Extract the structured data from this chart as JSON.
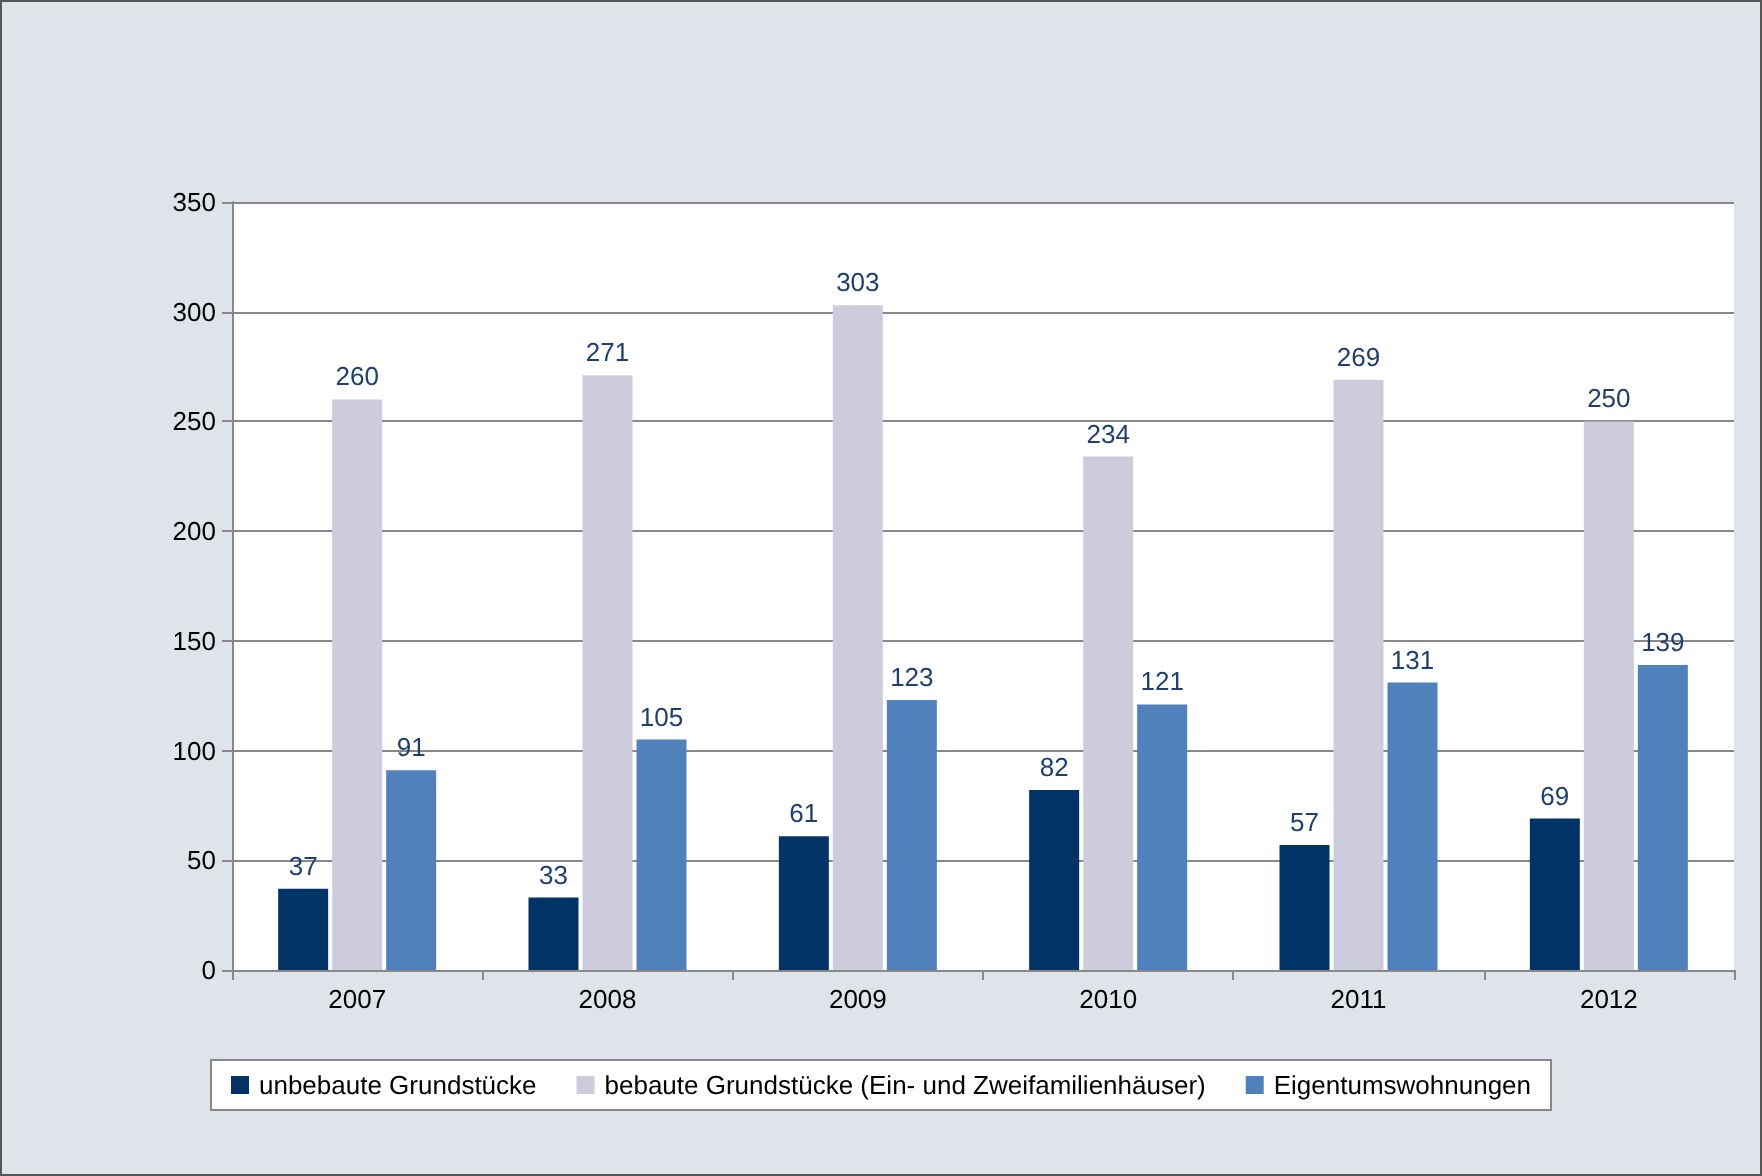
{
  "chart_data": {
    "type": "bar",
    "categories": [
      "2007",
      "2008",
      "2009",
      "2010",
      "2011",
      "2012"
    ],
    "series": [
      {
        "name": "unbebaute Grundstücke",
        "color": "#003366",
        "values": [
          37,
          33,
          61,
          82,
          57,
          69
        ]
      },
      {
        "name": "bebaute Grundstücke (Ein- und Zweifamilienhäuser)",
        "color": "#ccccdd",
        "values": [
          260,
          271,
          303,
          234,
          269,
          250
        ]
      },
      {
        "name": "Eigentumswohnungen",
        "color": "#4f81bd",
        "values": [
          91,
          105,
          123,
          121,
          131,
          139
        ]
      }
    ],
    "ylim": [
      0,
      350
    ],
    "yticks": [
      0,
      50,
      100,
      150,
      200,
      250,
      300,
      350
    ],
    "grid": "y",
    "legend": "bottom",
    "data_labels": true
  }
}
